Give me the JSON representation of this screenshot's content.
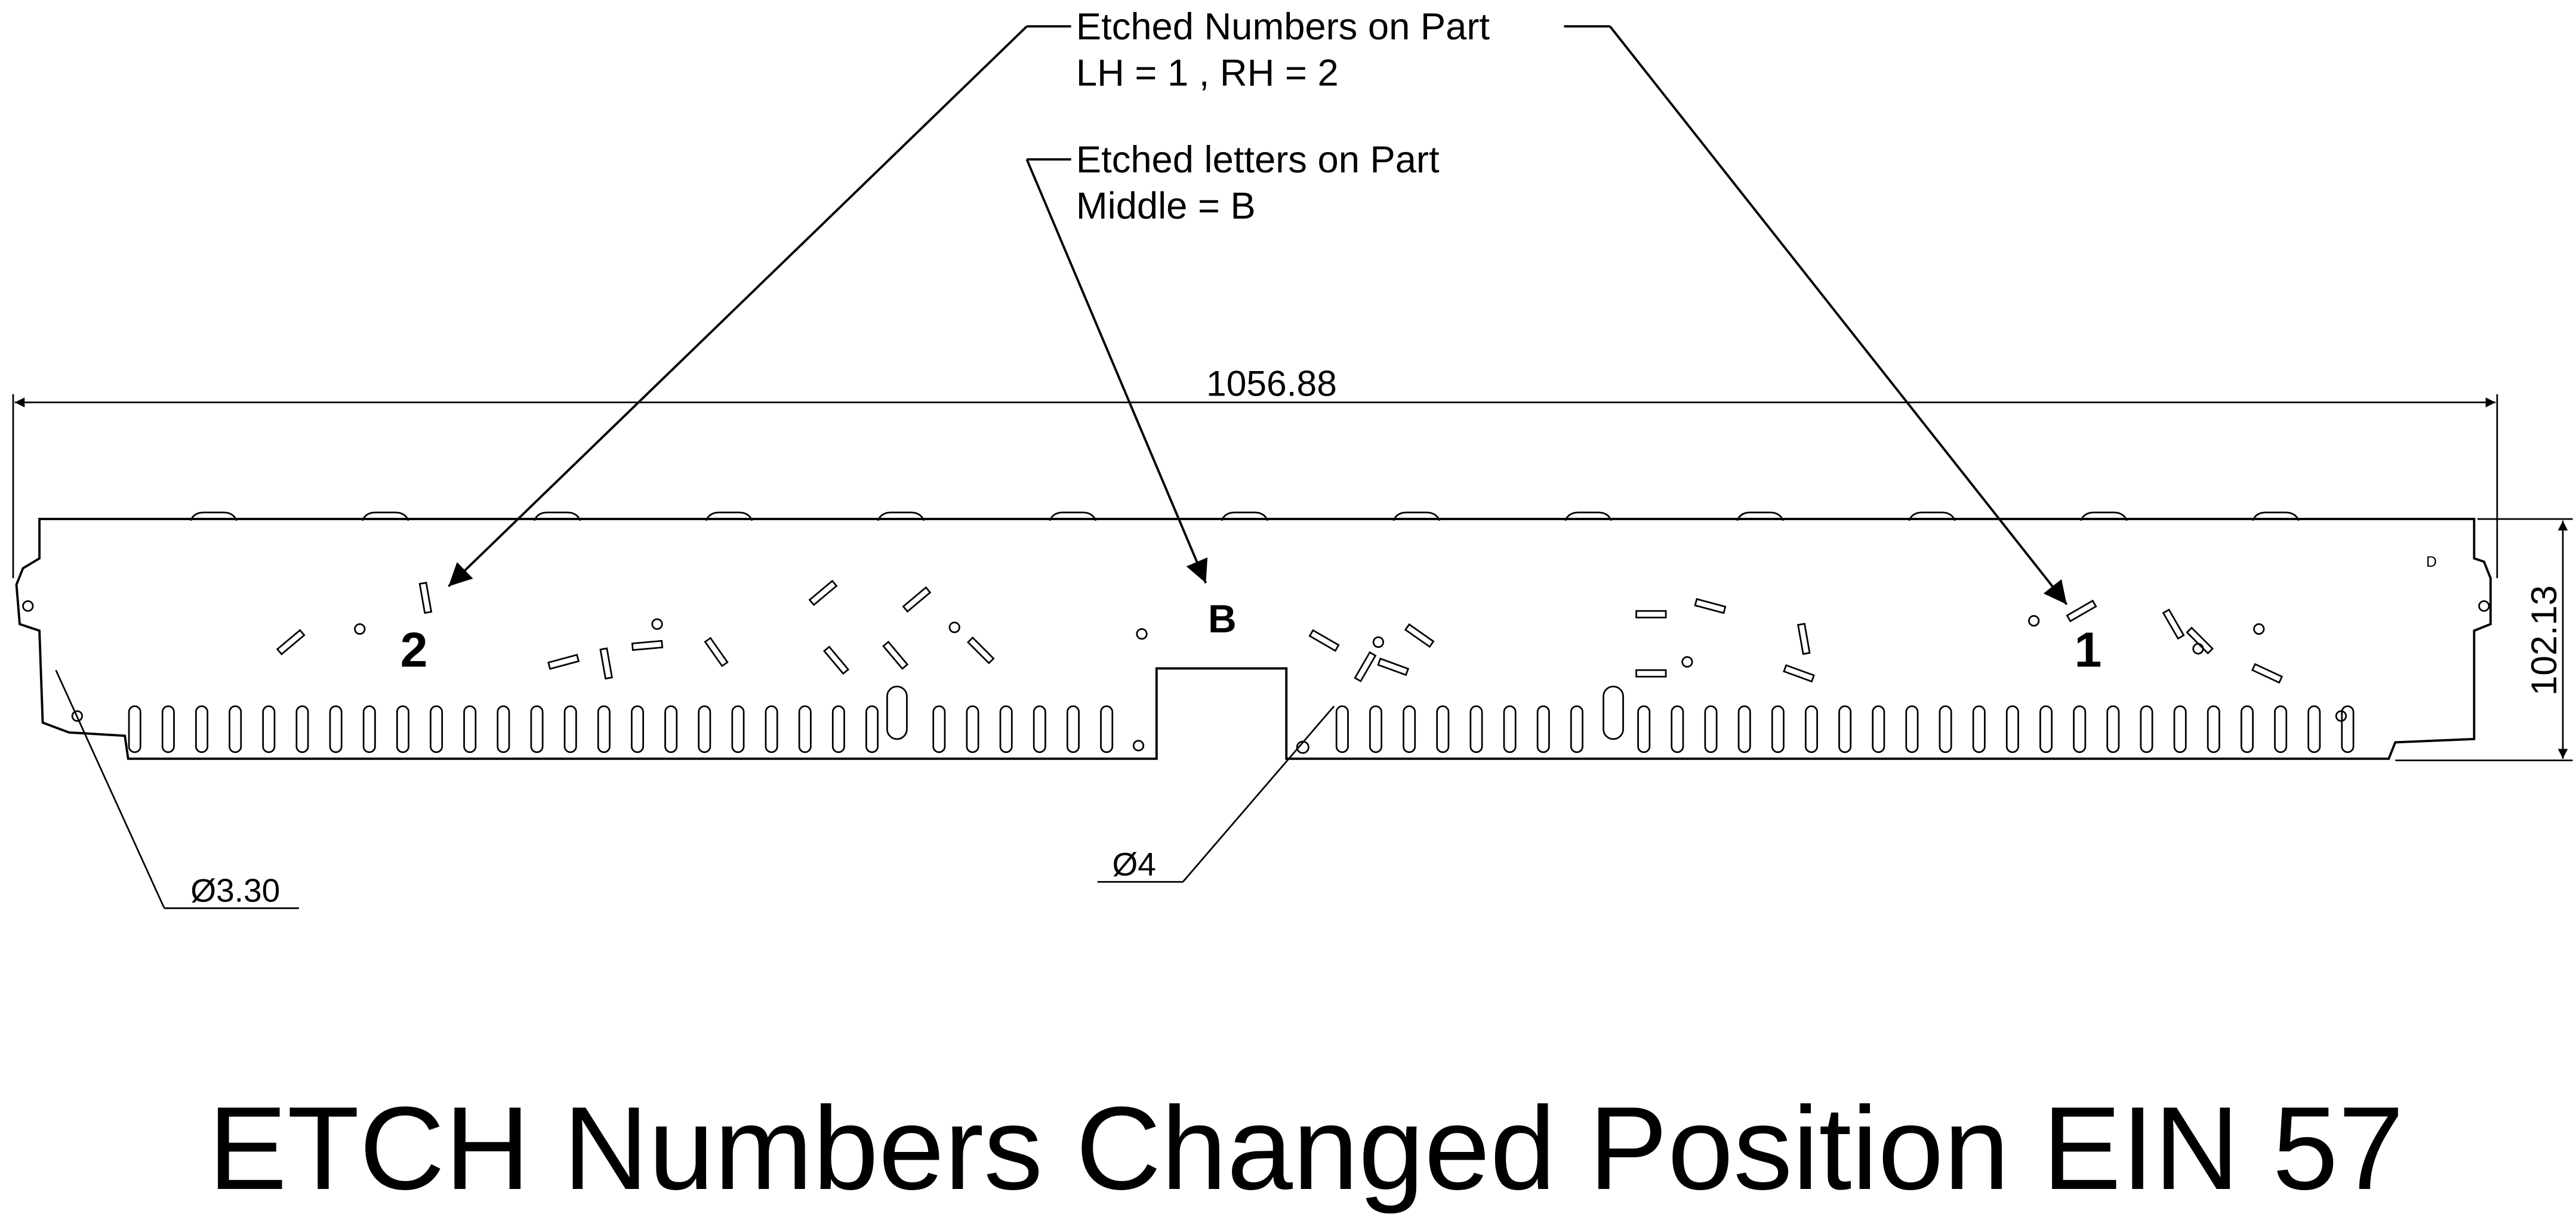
{
  "annotations": {
    "etched_numbers": {
      "line1": "Etched Numbers on Part",
      "line2": "LH = 1 , RH = 2"
    },
    "etched_letters": {
      "line1": "Etched letters on Part",
      "line2": "Middle = B"
    }
  },
  "dimensions": {
    "overall_length": "1056.88",
    "height": "102.13",
    "hole_small": "Ø3.30",
    "hole_large": "Ø4"
  },
  "part_marks": {
    "left_number": "2",
    "middle_letter": "B",
    "right_number": "1",
    "corner_letter": "D"
  },
  "title": "ETCH Numbers Changed Position EIN 57"
}
